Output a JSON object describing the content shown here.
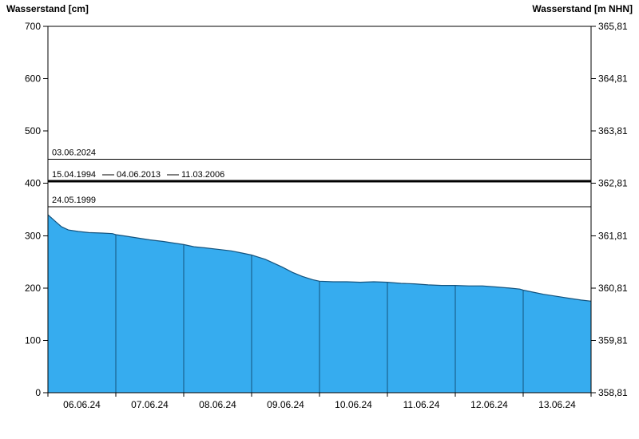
{
  "chart_data": {
    "type": "area",
    "title_left": "Wasserstand [cm]",
    "title_right": "Wasserstand [m NHN]",
    "x_labels": [
      "06.06.24",
      "07.06.24",
      "08.06.24",
      "09.06.24",
      "10.06.24",
      "11.06.24",
      "12.06.24",
      "13.06.24"
    ],
    "x_range_days": [
      0,
      8
    ],
    "y_left": {
      "label": "Wasserstand [cm]",
      "min": 0,
      "max": 700,
      "ticks": [
        0,
        100,
        200,
        300,
        400,
        500,
        600,
        700
      ]
    },
    "y_right": {
      "label": "Wasserstand [m NHN]",
      "ticks": [
        "358,81",
        "359,81",
        "360,81",
        "361,81",
        "362,81",
        "363,81",
        "364,81",
        "365,81"
      ]
    },
    "colors": {
      "area_fill": "#36ACEF",
      "area_outline": "#14537E",
      "day_separator": "#14537E",
      "reference_line": "#000000",
      "frame": "#000000",
      "background": "#FFFFFF"
    },
    "series": {
      "name": "Wasserstand",
      "points": [
        [
          0.0,
          340
        ],
        [
          0.06,
          333
        ],
        [
          0.12,
          326
        ],
        [
          0.2,
          317
        ],
        [
          0.3,
          311
        ],
        [
          0.45,
          308
        ],
        [
          0.6,
          306
        ],
        [
          0.8,
          305
        ],
        [
          0.95,
          304
        ],
        [
          1.0,
          302
        ],
        [
          1.15,
          299
        ],
        [
          1.3,
          296
        ],
        [
          1.5,
          292
        ],
        [
          1.7,
          289
        ],
        [
          1.85,
          286
        ],
        [
          2.0,
          283
        ],
        [
          2.15,
          279
        ],
        [
          2.3,
          277
        ],
        [
          2.5,
          274
        ],
        [
          2.7,
          271
        ],
        [
          2.85,
          267
        ],
        [
          3.0,
          263
        ],
        [
          3.1,
          259
        ],
        [
          3.2,
          255
        ],
        [
          3.3,
          249
        ],
        [
          3.45,
          240
        ],
        [
          3.6,
          230
        ],
        [
          3.75,
          222
        ],
        [
          3.9,
          216
        ],
        [
          4.0,
          213
        ],
        [
          4.2,
          212
        ],
        [
          4.4,
          212
        ],
        [
          4.6,
          211
        ],
        [
          4.8,
          212
        ],
        [
          5.0,
          211
        ],
        [
          5.2,
          209
        ],
        [
          5.4,
          208
        ],
        [
          5.6,
          206
        ],
        [
          5.8,
          205
        ],
        [
          6.0,
          205
        ],
        [
          6.2,
          204
        ],
        [
          6.4,
          204
        ],
        [
          6.6,
          202
        ],
        [
          6.8,
          200
        ],
        [
          6.95,
          198
        ],
        [
          7.0,
          196
        ],
        [
          7.15,
          192
        ],
        [
          7.3,
          188
        ],
        [
          7.5,
          184
        ],
        [
          7.7,
          180
        ],
        [
          7.85,
          177
        ],
        [
          8.0,
          175
        ]
      ]
    },
    "reference_lines": [
      {
        "labels": [
          "03.06.2024"
        ],
        "value": 446,
        "thickness": 1,
        "dashes_between_labels": false
      },
      {
        "labels": [
          "15.04.1994",
          "04.06.2013",
          "11.03.2006"
        ],
        "value": 404,
        "thickness": 3,
        "dashes_between_labels": true
      },
      {
        "labels": [
          "24.05.1999"
        ],
        "value": 355,
        "thickness": 1,
        "dashes_between_labels": false
      }
    ]
  }
}
